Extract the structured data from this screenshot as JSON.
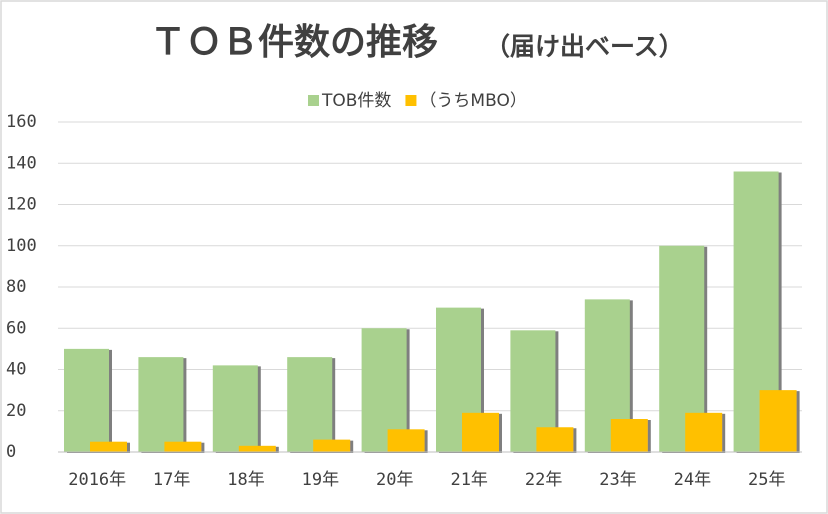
{
  "chart_data": {
    "type": "bar",
    "title": "ＴＯＢ件数の推移",
    "subtitle": "（届け出ベース）",
    "categories": [
      "2016年",
      "17年",
      "18年",
      "19年",
      "20年",
      "21年",
      "22年",
      "23年",
      "24年",
      "25年"
    ],
    "series": [
      {
        "name": "TOB件数",
        "color": "#a9d18e",
        "values": [
          50,
          46,
          42,
          46,
          60,
          70,
          59,
          74,
          100,
          136
        ]
      },
      {
        "name": "（うちMBO）",
        "color": "#ffc000",
        "values": [
          5,
          5,
          3,
          6,
          11,
          19,
          12,
          16,
          19,
          30
        ]
      }
    ],
    "ylim": [
      0,
      160
    ],
    "yticks": [
      0,
      20,
      40,
      60,
      80,
      100,
      120,
      140,
      160
    ],
    "grid": true,
    "legend": "top"
  }
}
